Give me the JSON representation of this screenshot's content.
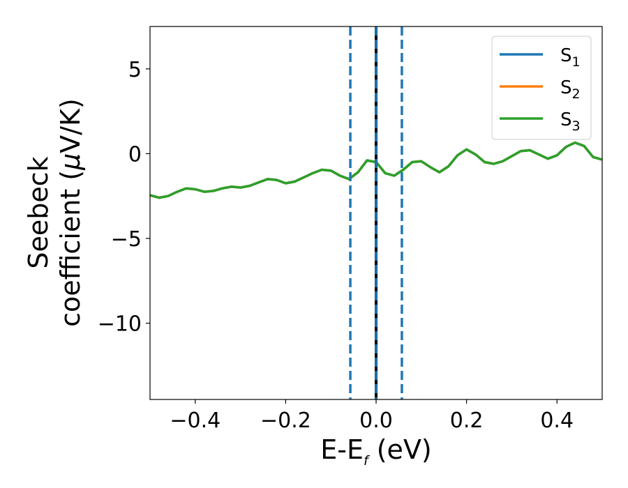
{
  "chart_data": {
    "type": "line",
    "xlabel": {
      "base": "E-E",
      "sub": "f",
      "tail": " (eV)"
    },
    "ylabel": {
      "line1": "Seebeck",
      "line2_pre": "coefficient  (",
      "mu": "μ",
      "line2_post": "V/K)"
    },
    "xlim": [
      -0.5,
      0.5
    ],
    "ylim": [
      -14.5,
      7.5
    ],
    "xticks": [
      -0.4,
      -0.2,
      0.0,
      0.2,
      0.4
    ],
    "xtick_labels": [
      "−0.4",
      "−0.2",
      "0.0",
      "0.2",
      "0.4"
    ],
    "yticks": [
      5,
      0,
      -5,
      -10
    ],
    "ytick_labels": [
      "5",
      "0",
      "−5",
      "−10"
    ],
    "legend_position": "top-right",
    "grid": false,
    "vlines": [
      {
        "x": -0.057,
        "style": "dashed",
        "color": "#1f77b4"
      },
      {
        "x": 0.0,
        "style": "solid",
        "color": "#000000"
      },
      {
        "x": 0.0,
        "style": "dashed",
        "color": "#1f77b4"
      },
      {
        "x": 0.057,
        "style": "dashed",
        "color": "#1f77b4"
      }
    ],
    "x": [
      -0.5,
      -0.48,
      -0.46,
      -0.44,
      -0.42,
      -0.4,
      -0.38,
      -0.36,
      -0.34,
      -0.32,
      -0.3,
      -0.28,
      -0.26,
      -0.24,
      -0.22,
      -0.2,
      -0.18,
      -0.16,
      -0.14,
      -0.12,
      -0.1,
      -0.08,
      -0.06,
      -0.04,
      -0.02,
      0.0,
      0.02,
      0.04,
      0.06,
      0.08,
      0.1,
      0.12,
      0.14,
      0.16,
      0.18,
      0.2,
      0.22,
      0.24,
      0.26,
      0.28,
      0.3,
      0.32,
      0.34,
      0.36,
      0.38,
      0.4,
      0.42,
      0.44,
      0.46,
      0.48,
      0.5
    ],
    "series": [
      {
        "name": "S",
        "sub": "1",
        "color": "#1f77b4",
        "values": [
          -2.45,
          -2.6,
          -2.5,
          -2.25,
          -2.05,
          -2.1,
          -2.25,
          -2.2,
          -2.05,
          -1.95,
          -2.0,
          -1.9,
          -1.7,
          -1.5,
          -1.55,
          -1.75,
          -1.65,
          -1.4,
          -1.15,
          -0.95,
          -1.0,
          -1.3,
          -1.5,
          -1.1,
          -0.4,
          -0.5,
          -1.15,
          -1.3,
          -0.95,
          -0.5,
          -0.45,
          -0.8,
          -1.1,
          -0.75,
          -0.1,
          0.25,
          -0.05,
          -0.5,
          -0.6,
          -0.45,
          -0.15,
          0.15,
          0.2,
          -0.05,
          -0.3,
          -0.1,
          0.4,
          0.65,
          0.45,
          -0.2,
          -0.35
        ]
      },
      {
        "name": "S",
        "sub": "2",
        "color": "#ff7f0e",
        "values": [
          -2.45,
          -2.6,
          -2.5,
          -2.25,
          -2.05,
          -2.1,
          -2.25,
          -2.2,
          -2.05,
          -1.95,
          -2.0,
          -1.9,
          -1.7,
          -1.5,
          -1.55,
          -1.75,
          -1.65,
          -1.4,
          -1.15,
          -0.95,
          -1.0,
          -1.3,
          -1.5,
          -1.1,
          -0.4,
          -0.5,
          -1.15,
          -1.3,
          -0.95,
          -0.5,
          -0.45,
          -0.8,
          -1.1,
          -0.75,
          -0.1,
          0.25,
          -0.05,
          -0.5,
          -0.6,
          -0.45,
          -0.15,
          0.15,
          0.2,
          -0.05,
          -0.3,
          -0.1,
          0.4,
          0.65,
          0.45,
          -0.2,
          -0.35
        ]
      },
      {
        "name": "S",
        "sub": "3",
        "color": "#2ca02c",
        "values": [
          -2.45,
          -2.6,
          -2.5,
          -2.25,
          -2.05,
          -2.1,
          -2.25,
          -2.2,
          -2.05,
          -1.95,
          -2.0,
          -1.9,
          -1.7,
          -1.5,
          -1.55,
          -1.75,
          -1.65,
          -1.4,
          -1.15,
          -0.95,
          -1.0,
          -1.3,
          -1.5,
          -1.1,
          -0.4,
          -0.5,
          -1.15,
          -1.3,
          -0.95,
          -0.5,
          -0.45,
          -0.8,
          -1.1,
          -0.75,
          -0.1,
          0.25,
          -0.05,
          -0.5,
          -0.6,
          -0.45,
          -0.15,
          0.15,
          0.2,
          -0.05,
          -0.3,
          -0.1,
          0.4,
          0.65,
          0.45,
          -0.2,
          -0.35
        ]
      }
    ]
  }
}
